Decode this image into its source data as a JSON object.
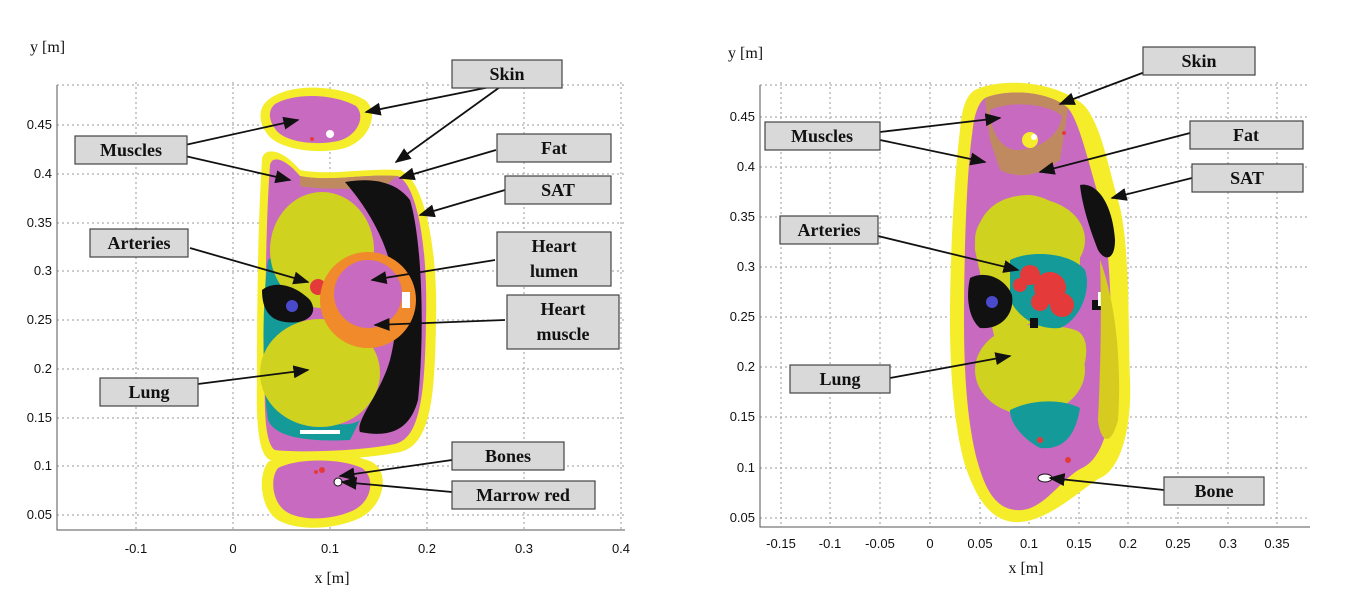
{
  "colors": {
    "skin": "#f5ec2a",
    "sat": "#d6cc20",
    "muscle": "#c86bc0",
    "lung": "#cfd21f",
    "fat": "#c08a60",
    "heart_muscle": "#f08a2a",
    "heart_lumen": "#c86bc0",
    "artery": "#e43a3a",
    "tissue_teal": "#159a9a",
    "black": "#111111",
    "bone": "#ffffff"
  },
  "left": {
    "y_axis_label": "y [m]",
    "x_axis_label": "x [m]",
    "x_ticks": [
      "-0.1",
      "0",
      "0.1",
      "0.2",
      "0.3",
      "0.4"
    ],
    "y_ticks": [
      "0.05",
      "0.1",
      "0.15",
      "0.2",
      "0.25",
      "0.3",
      "0.35",
      "0.4",
      "0.45"
    ],
    "labels": {
      "skin": "Skin",
      "muscles": "Muscles",
      "fat": "Fat",
      "sat": "SAT",
      "arteries": "Arteries",
      "heart_lumen_1": "Heart",
      "heart_lumen_2": "lumen",
      "heart_muscle_1": "Heart",
      "heart_muscle_2": "muscle",
      "lung": "Lung",
      "bones": "Bones",
      "marrow": "Marrow red"
    }
  },
  "right": {
    "y_axis_label": "y [m]",
    "x_axis_label": "x [m]",
    "x_ticks": [
      "-0.15",
      "-0.1",
      "-0.05",
      "0",
      "0.05",
      "0.1",
      "0.15",
      "0.2",
      "0.25",
      "0.3",
      "0.35"
    ],
    "y_ticks": [
      "0.05",
      "0.1",
      "0.15",
      "0.2",
      "0.25",
      "0.3",
      "0.35",
      "0.4",
      "0.45"
    ],
    "labels": {
      "skin": "Skin",
      "muscles": "Muscles",
      "fat": "Fat",
      "sat": "SAT",
      "arteries": "Arteries",
      "lung": "Lung",
      "bone": "Bone"
    }
  }
}
